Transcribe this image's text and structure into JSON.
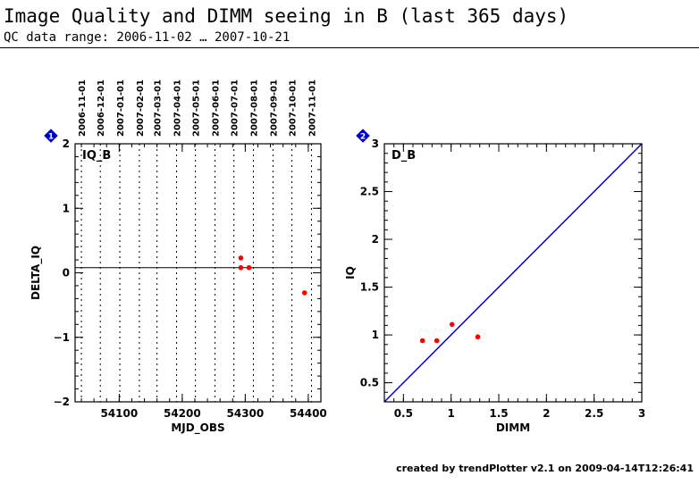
{
  "header": {
    "title": "Image Quality and DIMM seeing in B (last 365 days)",
    "subtitle": "QC data range: 2006-11-02 … 2007-10-21"
  },
  "footer": {
    "credit": "created by trendPlotter v2.1 on 2009-04-14T12:26:41"
  },
  "colors": {
    "points": "#ff0000",
    "fit_line": "#0000cc",
    "badge": "#0000cc"
  },
  "chart_data": [
    {
      "type": "scatter",
      "badge": "1",
      "panel_label": "IQ_B",
      "xlabel": "MJD_OBS",
      "ylabel": "DELTA_IQ",
      "xlim": [
        54030,
        54420
      ],
      "ylim": [
        -2,
        2
      ],
      "x_ticks": [
        "54100",
        "54200",
        "54300",
        "54400"
      ],
      "y_ticks": [
        "-2",
        "-1",
        "0",
        "1",
        "2"
      ],
      "reference_line_y": 0.08,
      "date_markers": [
        {
          "mjd": 54040,
          "label": "2006-11-01"
        },
        {
          "mjd": 54070,
          "label": "2006-12-01"
        },
        {
          "mjd": 54101,
          "label": "2007-01-01"
        },
        {
          "mjd": 54132,
          "label": "2007-02-01"
        },
        {
          "mjd": 54160,
          "label": "2007-03-01"
        },
        {
          "mjd": 54191,
          "label": "2007-04-01"
        },
        {
          "mjd": 54221,
          "label": "2007-05-01"
        },
        {
          "mjd": 54252,
          "label": "2007-06-01"
        },
        {
          "mjd": 54282,
          "label": "2007-07-01"
        },
        {
          "mjd": 54313,
          "label": "2007-08-01"
        },
        {
          "mjd": 54344,
          "label": "2007-09-01"
        },
        {
          "mjd": 54374,
          "label": "2007-10-01"
        },
        {
          "mjd": 54405,
          "label": "2007-11-01"
        }
      ],
      "points": [
        {
          "x": 54293,
          "y": 0.23
        },
        {
          "x": 54293,
          "y": 0.08
        },
        {
          "x": 54306,
          "y": 0.08
        },
        {
          "x": 54394,
          "y": -0.31
        }
      ]
    },
    {
      "type": "scatter",
      "badge": "2",
      "panel_label": "D_B",
      "xlabel": "DIMM",
      "ylabel": "IQ",
      "xlim": [
        0.3,
        3
      ],
      "ylim": [
        0.3,
        3
      ],
      "x_ticks": [
        "0.5",
        "1",
        "1.5",
        "2",
        "2.5",
        "3"
      ],
      "y_ticks": [
        "0.5",
        "1",
        "1.5",
        "2",
        "2.5",
        "3"
      ],
      "identity_line": true,
      "points": [
        {
          "x": 0.7,
          "y": 0.94
        },
        {
          "x": 0.85,
          "y": 0.94
        },
        {
          "x": 1.01,
          "y": 1.11
        },
        {
          "x": 1.28,
          "y": 0.98
        }
      ]
    }
  ]
}
